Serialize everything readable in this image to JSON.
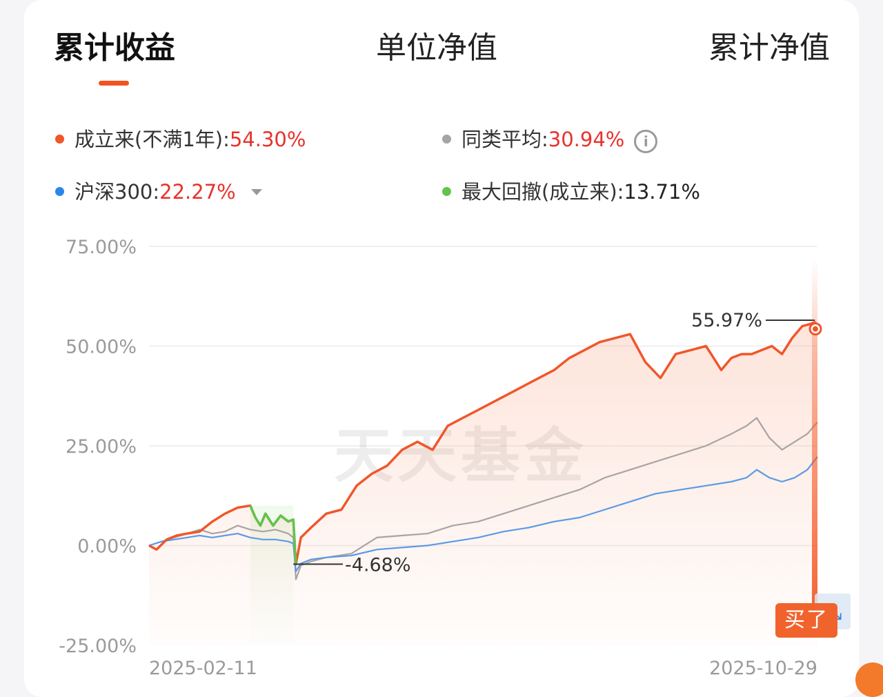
{
  "tabs": [
    {
      "label": "累计收益"
    },
    {
      "label": "单位净值"
    },
    {
      "label": "累计净值"
    }
  ],
  "legend": {
    "fund": {
      "label": "成立来(不满1年):",
      "value": "54.30%"
    },
    "peer": {
      "label": "同类平均:",
      "value": "30.94%"
    },
    "index": {
      "label": "沪深300:",
      "value": "22.27%"
    },
    "drawdown": {
      "label": "最大回撤(成立来):",
      "value": "13.71%"
    }
  },
  "colors": {
    "fund": "#f0562a",
    "peer": "#a8a4a4",
    "index": "#5b9ae6",
    "drawdown": "#62c44c",
    "accent": "#f3531f"
  },
  "watermark": "天天基金",
  "buy_button": "买了",
  "chart_data": {
    "type": "line",
    "ylim": [
      -25,
      75
    ],
    "yticks": [
      75,
      50,
      25,
      0,
      -25
    ],
    "ytick_labels": [
      "75.00%",
      "50.00%",
      "25.00%",
      "0.00%",
      "-25.00%"
    ],
    "x_start_label": "2025-02-11",
    "x_end_label": "2025-10-29",
    "annotations": [
      {
        "text": "55.97%",
        "x": 263,
        "y": 55.97
      },
      {
        "text": "-4.68%",
        "x": 57,
        "y": -4.68
      }
    ],
    "drawdown_range": [
      40,
      57
    ],
    "series": [
      {
        "key": "fund",
        "x": [
          0,
          3,
          7,
          11,
          15,
          20,
          25,
          30,
          35,
          40,
          42,
          44,
          46,
          49,
          52,
          55,
          57,
          58,
          60,
          64,
          70,
          76,
          82,
          88,
          94,
          100,
          106,
          112,
          118,
          124,
          130,
          136,
          142,
          148,
          154,
          160,
          166,
          172,
          178,
          184,
          190,
          196,
          202,
          208,
          214,
          220,
          224,
          226,
          230,
          234,
          238,
          242,
          246,
          250,
          254,
          258,
          261,
          263,
          264
        ],
        "values": [
          0,
          -1,
          1.5,
          2.5,
          3,
          3.5,
          6,
          8,
          9.5,
          10,
          7,
          5,
          8,
          5,
          7.5,
          6,
          6.5,
          -4.68,
          2,
          4.5,
          8,
          9,
          15,
          18,
          20,
          24,
          26,
          24,
          30,
          32,
          34,
          36,
          38,
          40,
          42,
          44,
          47,
          49,
          51,
          52,
          53,
          46,
          42,
          48,
          49,
          50,
          46,
          44,
          47,
          48,
          48,
          49,
          50,
          48,
          52,
          55,
          55.5,
          55.97,
          54.3
        ]
      },
      {
        "key": "peer",
        "x": [
          0,
          5,
          10,
          15,
          20,
          25,
          30,
          35,
          40,
          45,
          50,
          55,
          57,
          58,
          60,
          64,
          70,
          80,
          90,
          100,
          110,
          120,
          130,
          140,
          150,
          160,
          170,
          180,
          190,
          200,
          210,
          220,
          230,
          236,
          240,
          245,
          250,
          255,
          260,
          264
        ],
        "values": [
          0,
          1,
          2,
          3,
          4,
          3,
          3.5,
          5,
          4,
          3.5,
          4,
          3,
          2,
          -8.5,
          -5,
          -4,
          -3,
          -2,
          2,
          2.5,
          3,
          5,
          6,
          8,
          10,
          12,
          14,
          17,
          19,
          21,
          23,
          25,
          28,
          30,
          32,
          27,
          24,
          26,
          28,
          30.94
        ]
      },
      {
        "key": "index",
        "x": [
          0,
          5,
          10,
          15,
          20,
          25,
          30,
          35,
          40,
          45,
          50,
          55,
          57,
          58,
          60,
          64,
          70,
          80,
          90,
          100,
          110,
          120,
          130,
          140,
          150,
          160,
          170,
          180,
          190,
          200,
          210,
          220,
          230,
          236,
          240,
          245,
          250,
          255,
          260,
          264
        ],
        "values": [
          0,
          1,
          1.5,
          2,
          2.5,
          2,
          2.5,
          3,
          2,
          1.5,
          1.5,
          1,
          0.5,
          -6.5,
          -4.5,
          -3.5,
          -3,
          -2.5,
          -1,
          -0.5,
          0,
          1,
          2,
          3.5,
          4.5,
          6,
          7,
          9,
          11,
          13,
          14,
          15,
          16,
          17,
          19,
          17,
          16,
          17,
          19,
          22.27
        ]
      }
    ]
  }
}
